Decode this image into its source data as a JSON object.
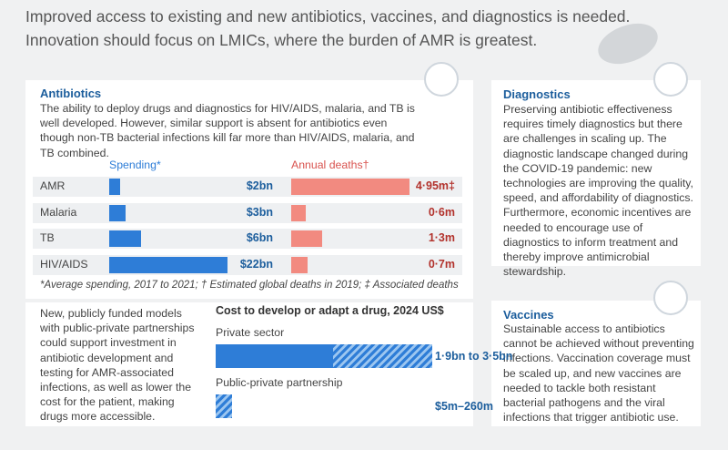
{
  "header": {
    "lines": [
      "Improved access to existing and new antibiotics, vaccines, and diagnostics is needed.",
      "Innovation should focus on LMICs, where the burden of AMR is greatest."
    ]
  },
  "antibiotics": {
    "title": "Antibiotics",
    "text": "The ability to deploy drugs and diagnostics for HIV/AIDS, malaria, and TB is well developed. However, similar support is absent for antibiotics even though non-TB bacterial infections kill far more than HIV/AIDS, malaria, and TB combined.",
    "chart": {
      "type": "bar",
      "categories": [
        "AMR",
        "Malaria",
        "TB",
        "HIV/AIDS"
      ],
      "series": [
        {
          "name": "Spending*",
          "color": "#2e7dd7",
          "values": [
            2,
            3,
            6,
            22
          ],
          "value_labels": [
            "$2bn",
            "$3bn",
            "$6bn",
            "$22bn"
          ]
        },
        {
          "name": "Annual deaths†",
          "color": "#f28a80",
          "values": [
            4.95,
            0.6,
            1.3,
            0.7
          ],
          "value_labels": [
            "4·95m‡",
            "0·6m",
            "1·3m",
            "0·7m"
          ]
        }
      ]
    },
    "footnote": "*Average spending, 2017 to 2021; † Estimated global deaths in 2019; ‡ Associated deaths"
  },
  "models": {
    "text": "New, publicly funded models with public-private partnerships could support investment in antibiotic development and testing for AMR-associated infections, as well as lower the cost for the patient, making drugs more accessible."
  },
  "cost": {
    "type": "range_bar",
    "title": "Cost to develop or adapt a drug, 2024 US$",
    "categories": [
      "Private sector",
      "Public-private partnership"
    ],
    "low": [
      1900,
      5
    ],
    "high": [
      3500,
      260
    ],
    "value_labels": [
      "1·9bn to 3·5bn",
      "$5m–260m"
    ],
    "color": "#2e7dd7"
  },
  "diagnostics": {
    "title": "Diagnostics",
    "text": "Preserving antibiotic effectiveness requires timely diagnostics but there are challenges in scaling up. The diagnostic landscape changed during the COVID-19 pandemic: new technologies are improving the quality, speed, and affordability of diagnostics. Furthermore, economic incentives are needed to encourage use of diagnostics to inform treatment and thereby improve antimicrobial stewardship."
  },
  "vaccines": {
    "title": "Vaccines",
    "text": "Sustainable access to antibiotics cannot be achieved without preventing infections. Vaccination coverage must be scaled up, and new vaccines are needed to tackle both resistant bacterial pathogens and the viral infections that trigger antibiotic use."
  }
}
